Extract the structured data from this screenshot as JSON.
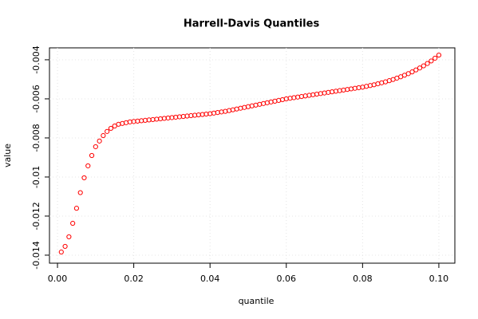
{
  "chart_data": {
    "type": "scatter",
    "title": "Harrell-Davis Quantiles",
    "x_label": "quantile",
    "y_label": "value",
    "x": [
      0.001,
      0.002,
      0.003,
      0.004,
      0.005,
      0.006,
      0.007,
      0.008,
      0.009,
      0.01,
      0.011,
      0.012,
      0.013,
      0.014,
      0.015,
      0.016,
      0.017,
      0.018,
      0.019,
      0.02,
      0.021,
      0.022,
      0.023,
      0.024,
      0.025,
      0.026,
      0.027,
      0.028,
      0.029,
      0.03,
      0.031,
      0.032,
      0.033,
      0.034,
      0.035,
      0.036,
      0.037,
      0.038,
      0.039,
      0.04,
      0.041,
      0.042,
      0.043,
      0.044,
      0.045,
      0.046,
      0.047,
      0.048,
      0.049,
      0.05,
      0.051,
      0.052,
      0.053,
      0.054,
      0.055,
      0.056,
      0.057,
      0.058,
      0.059,
      0.06,
      0.061,
      0.062,
      0.063,
      0.064,
      0.065,
      0.066,
      0.067,
      0.068,
      0.069,
      0.07,
      0.071,
      0.072,
      0.073,
      0.074,
      0.075,
      0.076,
      0.077,
      0.078,
      0.079,
      0.08,
      0.081,
      0.082,
      0.083,
      0.084,
      0.085,
      0.086,
      0.087,
      0.088,
      0.089,
      0.09,
      0.091,
      0.092,
      0.093,
      0.094,
      0.095,
      0.096,
      0.097,
      0.098,
      0.099,
      0.1
    ],
    "series": [
      {
        "color": "#ff0000",
        "values": [
          -0.01384,
          -0.01355,
          -0.01306,
          -0.01237,
          -0.0116,
          -0.0108,
          -0.01004,
          -0.00943,
          -0.0089,
          -0.00845,
          -0.00816,
          -0.00788,
          -0.00767,
          -0.00751,
          -0.00739,
          -0.0073,
          -0.00726,
          -0.00722,
          -0.00718,
          -0.00716,
          -0.00714,
          -0.00712,
          -0.0071,
          -0.00708,
          -0.00706,
          -0.00704,
          -0.00702,
          -0.007,
          -0.00698,
          -0.00696,
          -0.00694,
          -0.00692,
          -0.0069,
          -0.00688,
          -0.00686,
          -0.00684,
          -0.00682,
          -0.0068,
          -0.00678,
          -0.00676,
          -0.00673,
          -0.0067,
          -0.00667,
          -0.00664,
          -0.0066,
          -0.00656,
          -0.00652,
          -0.00648,
          -0.00644,
          -0.0064,
          -0.00636,
          -0.00632,
          -0.00628,
          -0.00624,
          -0.0062,
          -0.00616,
          -0.00612,
          -0.00608,
          -0.00604,
          -0.006,
          -0.00597,
          -0.00594,
          -0.00591,
          -0.00588,
          -0.00585,
          -0.00582,
          -0.00579,
          -0.00576,
          -0.00573,
          -0.0057,
          -0.00567,
          -0.00564,
          -0.00561,
          -0.00558,
          -0.00555,
          -0.00552,
          -0.00549,
          -0.00546,
          -0.00543,
          -0.0054,
          -0.00536,
          -0.00532,
          -0.00528,
          -0.00523,
          -0.00518,
          -0.00513,
          -0.00507,
          -0.00501,
          -0.00494,
          -0.00487,
          -0.00479,
          -0.00471,
          -0.00462,
          -0.00452,
          -0.00442,
          -0.00431,
          -0.00419,
          -0.00406,
          -0.00392,
          -0.00376
        ]
      }
    ],
    "xlim": [
      -0.0021,
      0.1042
    ],
    "ylim": [
      -0.01441,
      -0.00339
    ],
    "xticks": [
      {
        "value": 0,
        "label": "0.00"
      },
      0.02,
      0.04,
      0.06,
      0.08,
      {
        "value": 0.1,
        "label": "0.10"
      }
    ],
    "yticks": [
      -0.014,
      -0.012,
      -0.01,
      -0.008,
      -0.006,
      -0.004
    ],
    "grid": true
  }
}
